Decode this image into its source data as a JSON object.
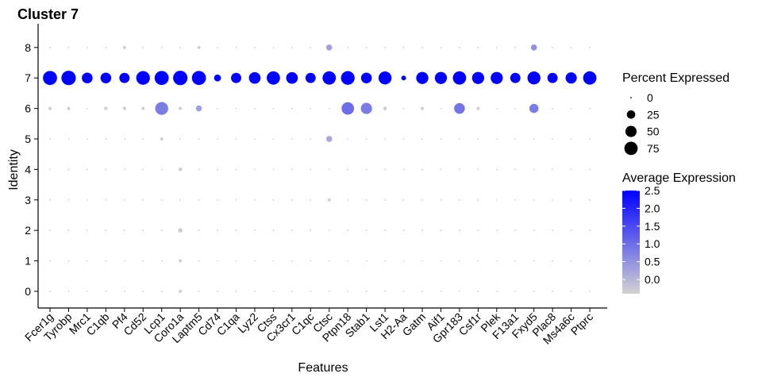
{
  "chart_data": {
    "type": "dotplot",
    "title": "Cluster  7",
    "xlabel": "Features",
    "ylabel": "Identity",
    "features": [
      "Fcer1g",
      "Tyrobp",
      "Mrc1",
      "C1qb",
      "Pf4",
      "Cd52",
      "Lcp1",
      "Coro1a",
      "Laptm5",
      "Cd74",
      "C1qa",
      "Lyz2",
      "Ctss",
      "Cx3cr1",
      "C1qc",
      "Ctsc",
      "Ptpn18",
      "Stab1",
      "Lst1",
      "H2-Aa",
      "Gatm",
      "Aif1",
      "Gpr183",
      "Csf1r",
      "Plek",
      "F13a1",
      "Fxyd5",
      "Plac8",
      "Ms4a6c",
      "Ptprc"
    ],
    "identities": [
      "0",
      "1",
      "2",
      "3",
      "4",
      "5",
      "6",
      "7",
      "8"
    ],
    "percent_expressed": {
      "7": [
        85,
        90,
        45,
        45,
        40,
        80,
        85,
        90,
        85,
        15,
        40,
        55,
        75,
        55,
        40,
        75,
        80,
        45,
        70,
        5,
        60,
        60,
        75,
        60,
        60,
        40,
        70,
        40,
        50,
        75
      ],
      "6": [
        1,
        1,
        0,
        1,
        1,
        1,
        70,
        1,
        10,
        0,
        0,
        0,
        0,
        0,
        0,
        0,
        65,
        50,
        2,
        0,
        1,
        0,
        45,
        1,
        0,
        0,
        30,
        0,
        0,
        0
      ],
      "8": [
        0,
        0,
        0,
        0,
        1,
        0,
        0,
        0,
        1,
        0,
        0,
        0,
        0,
        0,
        0,
        10,
        0,
        0,
        0,
        0,
        0,
        0,
        0,
        0,
        0,
        0,
        10,
        0,
        0,
        0
      ],
      "5": [
        0,
        0,
        0,
        0,
        0,
        0,
        1,
        0,
        0,
        0,
        0,
        0,
        0,
        0,
        0,
        10,
        0,
        0,
        0,
        0,
        0,
        0,
        0,
        0,
        0,
        0,
        0,
        0,
        0,
        0
      ],
      "4": [
        0,
        0,
        0,
        0,
        0,
        0,
        0,
        2,
        0,
        0,
        0,
        0,
        0,
        0,
        0,
        0,
        0,
        0,
        0,
        0,
        0,
        0,
        0,
        0,
        0,
        0,
        0,
        0,
        0,
        0
      ],
      "3": [
        0,
        0,
        0,
        0,
        0,
        0,
        0,
        0,
        0,
        0,
        0,
        0,
        0,
        0,
        0,
        1,
        0,
        0,
        0,
        0,
        0,
        0,
        0,
        0,
        0,
        0,
        0,
        0,
        0,
        0
      ],
      "2": [
        0,
        0,
        0,
        0,
        0,
        0,
        0,
        4,
        0,
        0,
        0,
        0,
        0,
        0,
        0,
        0,
        0,
        0,
        0,
        0,
        0,
        0,
        0,
        0,
        0,
        0,
        0,
        0,
        0,
        0
      ],
      "1": [
        0,
        0,
        0,
        0,
        0,
        0,
        0,
        1,
        0,
        0,
        0,
        0,
        0,
        0,
        0,
        0,
        0,
        0,
        0,
        0,
        0,
        0,
        0,
        0,
        0,
        0,
        0,
        0,
        0,
        0
      ],
      "0": [
        0,
        0,
        0,
        0,
        0,
        0,
        0,
        1,
        0,
        0,
        0,
        0,
        0,
        0,
        0,
        0,
        0,
        0,
        0,
        0,
        0,
        0,
        0,
        0,
        0,
        0,
        0,
        0,
        0,
        0
      ]
    },
    "average_expression": {
      "7": 2.5,
      "6": [
        -0.3,
        -0.3,
        -0.3,
        -0.3,
        -0.3,
        -0.3,
        0.8,
        -0.3,
        0.3,
        -0.3,
        -0.3,
        -0.3,
        -0.3,
        -0.3,
        -0.3,
        -0.3,
        1.0,
        0.8,
        -0.3,
        -0.3,
        -0.3,
        -0.3,
        0.9,
        -0.3,
        -0.3,
        -0.3,
        0.8,
        -0.3,
        -0.3,
        -0.3
      ],
      "8": {
        "Ctsc": 0.3,
        "Fxyd5": 0.5
      },
      "5": {
        "Ctsc": 0.2
      },
      "default": -0.3
    },
    "yrange": [
      -0.5,
      8.5
    ],
    "grid": false,
    "legend_position": "right",
    "color_low": "#d3d3d3",
    "color_high": "#0000ff"
  },
  "legend": {
    "size_title": "Percent Expressed",
    "size_items": [
      {
        "label": "0",
        "value": 0
      },
      {
        "label": "25",
        "value": 25
      },
      {
        "label": "50",
        "value": 50
      },
      {
        "label": "75",
        "value": 75
      }
    ],
    "color_title": "Average Expression",
    "color_ticks": [
      {
        "label": "2.5",
        "value": 2.5
      },
      {
        "label": "2.0",
        "value": 2.0
      },
      {
        "label": "1.5",
        "value": 1.5
      },
      {
        "label": "1.0",
        "value": 1.0
      },
      {
        "label": "0.5",
        "value": 0.5
      },
      {
        "label": "0.0",
        "value": 0.0
      }
    ],
    "color_range": [
      -0.4,
      2.5
    ]
  }
}
